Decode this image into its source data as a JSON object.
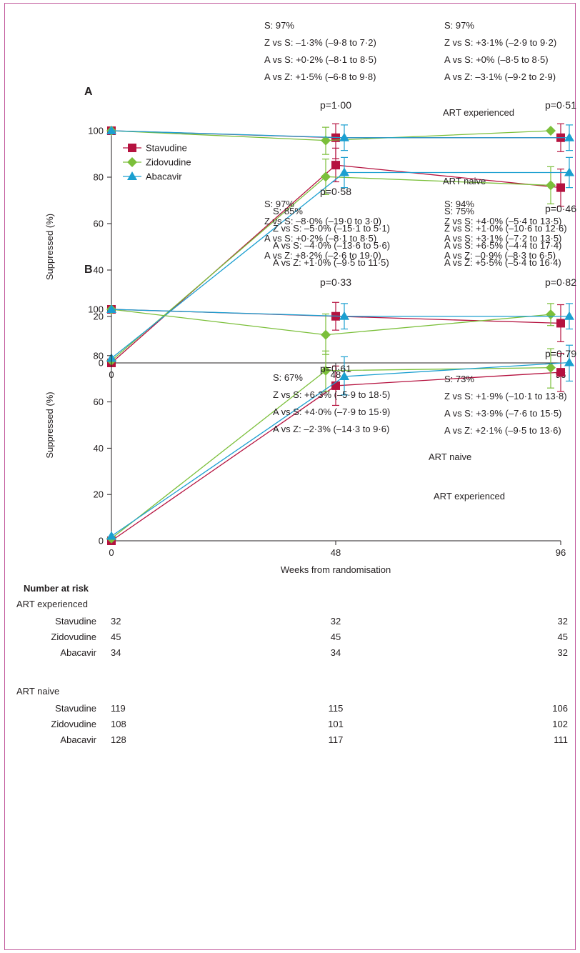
{
  "chart_data": [
    {
      "type": "line",
      "panel_label": "A",
      "ylabel": "Suppressed (%)",
      "xlabel": "",
      "ylim": [
        0,
        100
      ],
      "y_ticks": [
        "0",
        "20",
        "40",
        "60",
        "80",
        "100"
      ],
      "x_ticks": [
        "0",
        "48",
        "96"
      ],
      "x": [
        0,
        48,
        96
      ],
      "legend": [
        "Stavudine",
        "Zidovudine",
        "Abacavir"
      ],
      "legend_position": "top-left",
      "curve_labels": [
        "ART experienced",
        "ART naive"
      ],
      "series": [
        {
          "name": "Stavudine",
          "group": "ART experienced",
          "color": "#b5123f",
          "marker": "square",
          "values": [
            100,
            97,
            97
          ],
          "error_low": [
            null,
            88,
            91
          ],
          "error_high": [
            null,
            103,
            103
          ]
        },
        {
          "name": "Zidovudine",
          "group": "ART experienced",
          "color": "#7bbf3a",
          "marker": "diamond",
          "values": [
            100,
            95.8,
            100
          ],
          "error_low": [
            null,
            89.8,
            null
          ],
          "error_high": [
            null,
            101.5,
            null
          ]
        },
        {
          "name": "Abacavir",
          "group": "ART experienced",
          "color": "#1b9fd0",
          "marker": "triangle",
          "values": [
            100,
            97,
            97
          ],
          "error_low": [
            null,
            91.5,
            91.5
          ],
          "error_high": [
            null,
            102.5,
            102.5
          ]
        },
        {
          "name": "Stavudine",
          "group": "ART naive",
          "color": "#b5123f",
          "marker": "square",
          "values": [
            0,
            85.2,
            75.5
          ],
          "error_low": [
            null,
            78,
            67.5
          ],
          "error_high": [
            null,
            92.5,
            83.5
          ]
        },
        {
          "name": "Zidovudine",
          "group": "ART naive",
          "color": "#7bbf3a",
          "marker": "diamond",
          "values": [
            1,
            80.2,
            76.5
          ],
          "error_low": [
            null,
            72.5,
            68.5
          ],
          "error_high": [
            null,
            87.8,
            84.5
          ]
        },
        {
          "name": "Abacavir",
          "group": "ART naive",
          "color": "#1b9fd0",
          "marker": "triangle",
          "values": [
            2,
            82,
            82
          ],
          "error_low": [
            null,
            75.5,
            75.5
          ],
          "error_high": [
            null,
            88.5,
            88.5
          ]
        }
      ],
      "annotations": [
        {
          "at": "exp48",
          "lines": [
            "S: 97%",
            "Z vs S: –1·3% (–9·8 to 7·2)",
            "A vs S: +0·2% (–8·1 to 8·5)",
            "A vs Z: +1·5% (–6·8 to 9·8)"
          ],
          "p": "p=1·00"
        },
        {
          "at": "exp96",
          "lines": [
            "S: 97%",
            "Z vs S: +3·1% (–2·9 to 9·2)",
            "A vs S: +0% (–8·5 to 8·5)",
            "A vs Z: –3·1% (–9·2 to 2·9)"
          ],
          "p": "p=0·51"
        },
        {
          "at": "naive48",
          "lines": [
            "S: 85%",
            "Z vs S: –5·0% (–15·1 to 5·1)",
            "A vs S: –4·0% (–13·6 to 5·6)",
            "A vs Z: +1·0% (–9·5 to 11·5)"
          ],
          "p": "p=0·58"
        },
        {
          "at": "naive96",
          "lines": [
            "S: 75%",
            "Z vs S: +1·0% (–10·6 to 12·6)",
            "A vs S: +6·5% (–4·4 to 17·4)",
            "A vs Z: +5·5% (–5·4 to 16·4)"
          ],
          "p": "p=0·46"
        }
      ]
    },
    {
      "type": "line",
      "panel_label": "B",
      "ylabel": "Suppressed (%)",
      "xlabel": "Weeks from randomisation",
      "ylim": [
        0,
        100
      ],
      "y_ticks": [
        "0",
        "20",
        "40",
        "60",
        "80",
        "100"
      ],
      "x_ticks": [
        "0",
        "48",
        "96"
      ],
      "x": [
        0,
        48,
        96
      ],
      "curve_labels": [
        "ART experienced",
        "ART naive"
      ],
      "series": [
        {
          "name": "Stavudine",
          "group": "ART experienced",
          "color": "#b5123f",
          "marker": "square",
          "values": [
            100,
            97,
            94
          ],
          "error_low": [
            null,
            91,
            86
          ],
          "error_high": [
            null,
            103,
            102
          ]
        },
        {
          "name": "Zidovudine",
          "group": "ART experienced",
          "color": "#7bbf3a",
          "marker": "diamond",
          "values": [
            100,
            89,
            97.8
          ],
          "error_low": [
            null,
            80.5,
            93
          ],
          "error_high": [
            null,
            98,
            102.5
          ]
        },
        {
          "name": "Abacavir",
          "group": "ART experienced",
          "color": "#1b9fd0",
          "marker": "triangle",
          "values": [
            100,
            97,
            97
          ],
          "error_low": [
            null,
            91.5,
            91.5
          ],
          "error_high": [
            null,
            102.5,
            102.5
          ]
        },
        {
          "name": "Stavudine",
          "group": "ART naive",
          "color": "#b5123f",
          "marker": "square",
          "values": [
            0,
            67,
            72.8
          ],
          "error_low": [
            null,
            58.5,
            64.5
          ],
          "error_high": [
            null,
            75.5,
            81
          ]
        },
        {
          "name": "Zidovudine",
          "group": "ART naive",
          "color": "#7bbf3a",
          "marker": "diamond",
          "values": [
            1,
            73.5,
            74.8
          ],
          "error_low": [
            null,
            64.5,
            66
          ],
          "error_high": [
            null,
            82,
            83
          ]
        },
        {
          "name": "Abacavir",
          "group": "ART naive",
          "color": "#1b9fd0",
          "marker": "triangle",
          "values": [
            2,
            71,
            77
          ],
          "error_low": [
            null,
            63,
            69
          ],
          "error_high": [
            null,
            79.5,
            84.5
          ]
        }
      ],
      "annotations": [
        {
          "at": "exp48",
          "lines": [
            "S: 97%",
            "Z vs S: –8·0% (–19·0 to 3·0)",
            "A vs S: +0·2% (–8·1 to 8·5)",
            "A vs Z: +8·2% (–2·6 to 19·0)"
          ],
          "p": "p=0·33"
        },
        {
          "at": "exp96",
          "lines": [
            "S: 94%",
            "Z vs S: +4·0% (–5·4 to 13·5)",
            "A vs S: +3·1% (–7·2 to 13·5)",
            "A vs Z: –0·9% (–8·3 to 6·5)"
          ],
          "p": "p=0·82"
        },
        {
          "at": "naive48",
          "lines": [
            "S: 67%",
            "Z vs S: +6·3% (–5·9 to 18·5)",
            "A vs S: +4·0% (–7·9 to 15·9)",
            "A vs Z: –2·3% (–14·3 to 9·6)"
          ],
          "p": "p=0·61"
        },
        {
          "at": "naive96",
          "lines": [
            "S: 73%",
            "Z vs S: +1·9% (–10·1 to 13·8)",
            "A vs S: +3·9% (–7·6 to 15·5)",
            "A vs Z: +2·1% (–9·5 to 13·6)"
          ],
          "p": "p=0·79"
        }
      ]
    }
  ],
  "risk_table": {
    "title": "Number at risk",
    "groups": [
      {
        "name": "ART experienced",
        "rows": [
          {
            "label": "Stavudine",
            "values": [
              "32",
              "32",
              "32"
            ]
          },
          {
            "label": "Zidovudine",
            "values": [
              "45",
              "45",
              "45"
            ]
          },
          {
            "label": "Abacavir",
            "values": [
              "34",
              "34",
              "32"
            ]
          }
        ]
      },
      {
        "name": "ART naive",
        "rows": [
          {
            "label": "Stavudine",
            "values": [
              "119",
              "115",
              "106"
            ]
          },
          {
            "label": "Zidovudine",
            "values": [
              "108",
              "101",
              "102"
            ]
          },
          {
            "label": "Abacavir",
            "values": [
              "128",
              "117",
              "111"
            ]
          }
        ]
      }
    ]
  }
}
